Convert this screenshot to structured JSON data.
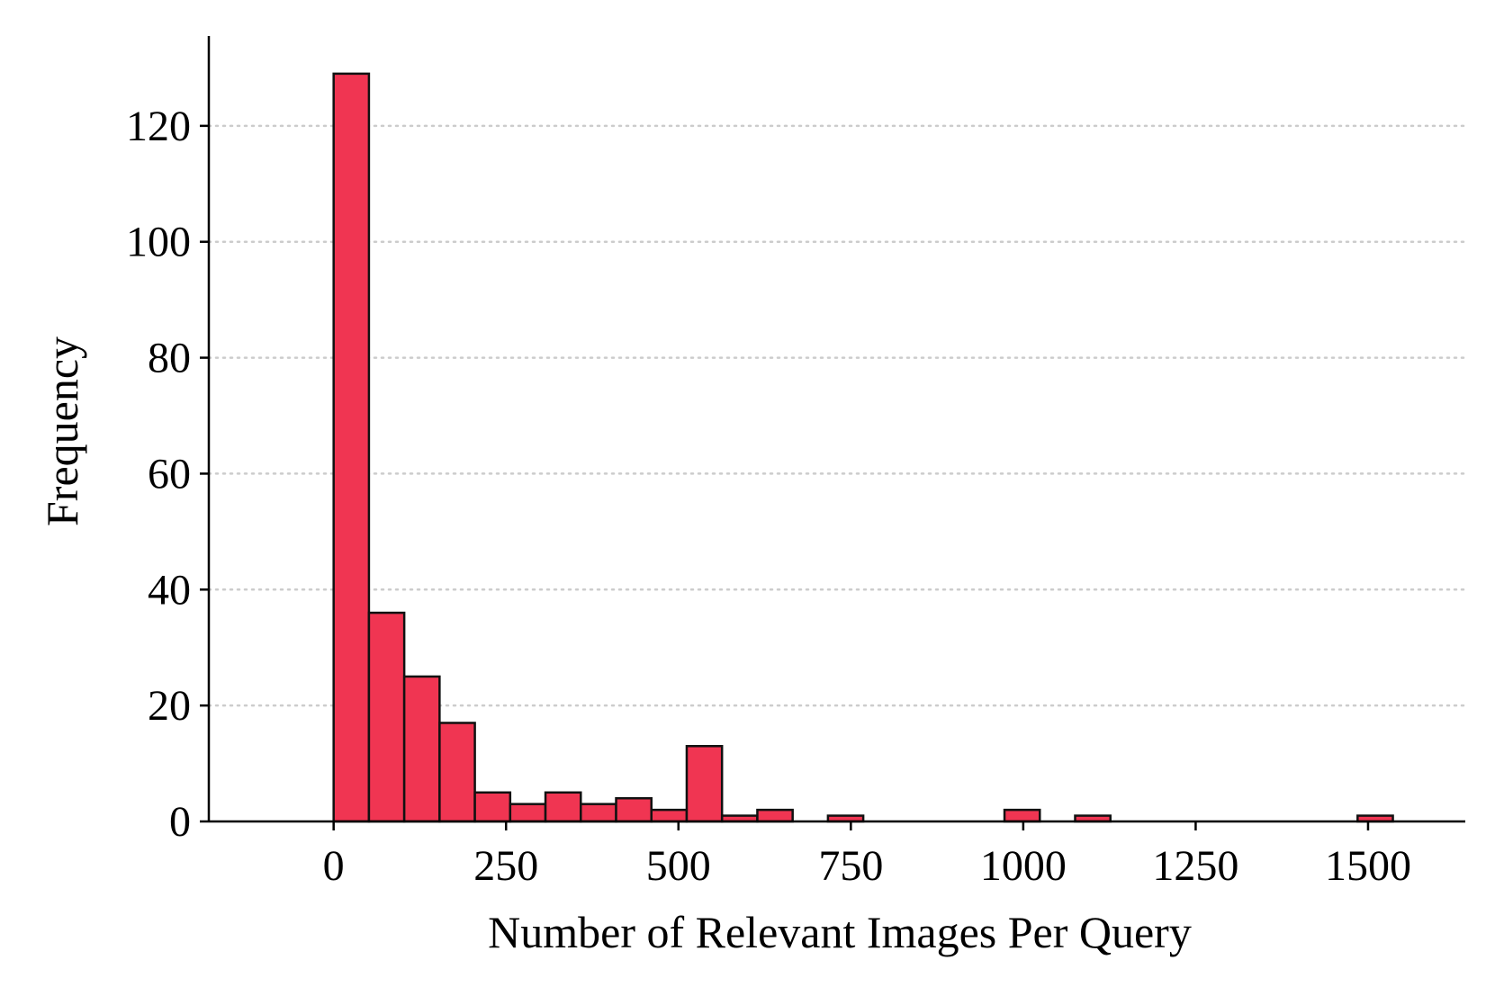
{
  "chart_data": {
    "type": "bar",
    "subtype": "histogram",
    "title": "",
    "xlabel": "Number of Relevant Images Per Query",
    "ylabel": "Frequency",
    "xlim": [
      -181,
      1641
    ],
    "ylim": [
      0,
      135.5
    ],
    "xticks": [
      0,
      250,
      500,
      750,
      1000,
      1250,
      1500
    ],
    "xtick_labels": [
      "0",
      "250",
      "500",
      "750",
      "1000",
      "1250",
      "1500"
    ],
    "yticks": [
      0,
      20,
      40,
      60,
      80,
      100,
      120
    ],
    "ytick_labels": [
      "0",
      "20",
      "40",
      "60",
      "80",
      "100",
      "120"
    ],
    "grid": {
      "y": true,
      "x": false,
      "style": "dotted"
    },
    "bin_start": 0,
    "bin_width": 51.2,
    "values": [
      129,
      36,
      25,
      17,
      5,
      3,
      5,
      3,
      4,
      2,
      13,
      1,
      2,
      0,
      1,
      0,
      0,
      0,
      0,
      2,
      0,
      1,
      0,
      0,
      0,
      0,
      0,
      0,
      0,
      1
    ],
    "colors": {
      "bar_fill": "#f03552",
      "bar_edge": "#111111",
      "grid": "#cccccc",
      "axis": "#000000"
    }
  }
}
